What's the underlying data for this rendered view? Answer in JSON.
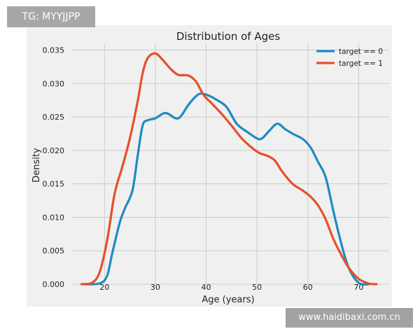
{
  "watermarks": {
    "top_left": "TG: MYYJJPP",
    "bottom_right": "www.haidibaxi.com.cn"
  },
  "chart_data": {
    "type": "line",
    "title": "Distribution of Ages",
    "xlabel": "Age (years)",
    "ylabel": "Density",
    "xlim": [
      13.5,
      76
    ],
    "ylim": [
      0,
      0.036
    ],
    "xticks": [
      20,
      30,
      40,
      50,
      60,
      70
    ],
    "yticks": [
      "0.000",
      "0.005",
      "0.010",
      "0.015",
      "0.020",
      "0.025",
      "0.030",
      "0.035"
    ],
    "grid": true,
    "legend_position": "top-right",
    "series": [
      {
        "name": "target == 0",
        "color": "#1f8bc2",
        "points": [
          [
            16,
            0.0
          ],
          [
            19,
            0.0001
          ],
          [
            20.5,
            0.0012
          ],
          [
            21.5,
            0.0045
          ],
          [
            23,
            0.0092
          ],
          [
            24,
            0.0113
          ],
          [
            25.5,
            0.014
          ],
          [
            26.5,
            0.019
          ],
          [
            27.5,
            0.0237
          ],
          [
            28.5,
            0.0245
          ],
          [
            30,
            0.0248
          ],
          [
            32,
            0.0256
          ],
          [
            34,
            0.0248
          ],
          [
            35,
            0.0251
          ],
          [
            36.5,
            0.0268
          ],
          [
            38,
            0.0281
          ],
          [
            39,
            0.0285
          ],
          [
            40.5,
            0.0282
          ],
          [
            42,
            0.0276
          ],
          [
            44,
            0.0265
          ],
          [
            46,
            0.024
          ],
          [
            48,
            0.0228
          ],
          [
            50,
            0.0218
          ],
          [
            51,
            0.0218
          ],
          [
            52.5,
            0.023
          ],
          [
            54,
            0.024
          ],
          [
            55.5,
            0.0232
          ],
          [
            57,
            0.0225
          ],
          [
            59,
            0.0217
          ],
          [
            60.5,
            0.0205
          ],
          [
            62,
            0.0183
          ],
          [
            63.5,
            0.016
          ],
          [
            65,
            0.011
          ],
          [
            66.5,
            0.0063
          ],
          [
            68,
            0.0025
          ],
          [
            70,
            0.0002
          ],
          [
            72,
            0.0
          ]
        ]
      },
      {
        "name": "target == 1",
        "color": "#e5502d",
        "points": [
          [
            15.5,
            0.0
          ],
          [
            17.5,
            0.0002
          ],
          [
            19,
            0.0017
          ],
          [
            20.5,
            0.0064
          ],
          [
            22,
            0.0135
          ],
          [
            23.5,
            0.0175
          ],
          [
            25,
            0.0218
          ],
          [
            26.5,
            0.0272
          ],
          [
            27.5,
            0.0315
          ],
          [
            28.5,
            0.0338
          ],
          [
            30,
            0.0345
          ],
          [
            31.5,
            0.0335
          ],
          [
            33,
            0.0322
          ],
          [
            34.5,
            0.0313
          ],
          [
            36.5,
            0.0312
          ],
          [
            38,
            0.0303
          ],
          [
            39.5,
            0.0283
          ],
          [
            41,
            0.0271
          ],
          [
            43,
            0.0255
          ],
          [
            45,
            0.0237
          ],
          [
            47,
            0.0218
          ],
          [
            49,
            0.0204
          ],
          [
            50.5,
            0.0196
          ],
          [
            52,
            0.0192
          ],
          [
            53.5,
            0.0185
          ],
          [
            55,
            0.0168
          ],
          [
            57,
            0.015
          ],
          [
            59,
            0.014
          ],
          [
            60.5,
            0.0131
          ],
          [
            62,
            0.0118
          ],
          [
            63.5,
            0.0097
          ],
          [
            65,
            0.0068
          ],
          [
            66.5,
            0.0045
          ],
          [
            68,
            0.0025
          ],
          [
            70,
            0.0008
          ],
          [
            72,
            0.0001
          ],
          [
            73.5,
            0.0
          ]
        ]
      }
    ]
  }
}
